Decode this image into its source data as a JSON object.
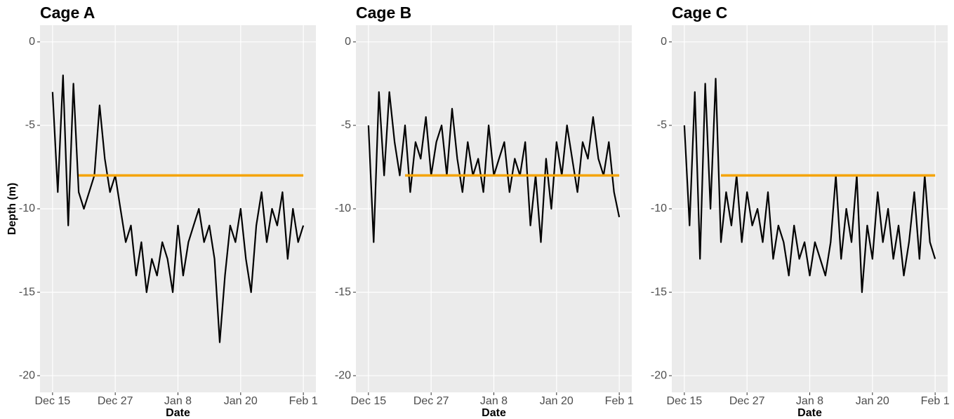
{
  "chart_data": [
    {
      "type": "line",
      "title": "Cage A",
      "x_label": "Date",
      "y_label": "Depth (m)",
      "x": [
        "Dec 15",
        "Dec 16",
        "Dec 17",
        "Dec 18",
        "Dec 19",
        "Dec 20",
        "Dec 21",
        "Dec 22",
        "Dec 23",
        "Dec 24",
        "Dec 25",
        "Dec 26",
        "Dec 27",
        "Dec 28",
        "Dec 29",
        "Dec 30",
        "Dec 31",
        "Jan 1",
        "Jan 2",
        "Jan 3",
        "Jan 4",
        "Jan 5",
        "Jan 6",
        "Jan 7",
        "Jan 8",
        "Jan 9",
        "Jan 10",
        "Jan 11",
        "Jan 12",
        "Jan 13",
        "Jan 14",
        "Jan 15",
        "Jan 16",
        "Jan 17",
        "Jan 18",
        "Jan 19",
        "Jan 20",
        "Jan 21",
        "Jan 22",
        "Jan 23",
        "Jan 24",
        "Jan 25",
        "Jan 26",
        "Jan 27",
        "Jan 28",
        "Jan 29",
        "Jan 30",
        "Jan 31",
        "Feb 1"
      ],
      "values": [
        -3,
        -9,
        -2,
        -11,
        -2.5,
        -9,
        -10,
        -9,
        -8,
        -3.8,
        -7,
        -9,
        -8,
        -10,
        -12,
        -11,
        -14,
        -12,
        -15,
        -13,
        -14,
        -12,
        -13,
        -15,
        -11,
        -14,
        -12,
        -11,
        -10,
        -12,
        -11,
        -13,
        -18,
        -14,
        -11,
        -12,
        -10,
        -13,
        -15,
        -11,
        -9,
        -12,
        -10,
        -11,
        -9,
        -13,
        -10,
        -12,
        -11
      ],
      "color": "#000000",
      "hline": {
        "value": -8,
        "x": [
          "Dec 20",
          "Feb 1"
        ],
        "color": "#f5a300"
      },
      "xticks": [
        "Dec 15",
        "Dec 27",
        "Jan 8",
        "Jan 20",
        "Feb 1"
      ],
      "ylim": [
        -21,
        1
      ],
      "yticks": [
        0,
        -5,
        -10,
        -15,
        -20
      ],
      "grid": true
    },
    {
      "type": "line",
      "title": "Cage B",
      "x_label": "Date",
      "x": [
        "Dec 15",
        "Dec 16",
        "Dec 17",
        "Dec 18",
        "Dec 19",
        "Dec 20",
        "Dec 21",
        "Dec 22",
        "Dec 23",
        "Dec 24",
        "Dec 25",
        "Dec 26",
        "Dec 27",
        "Dec 28",
        "Dec 29",
        "Dec 30",
        "Dec 31",
        "Jan 1",
        "Jan 2",
        "Jan 3",
        "Jan 4",
        "Jan 5",
        "Jan 6",
        "Jan 7",
        "Jan 8",
        "Jan 9",
        "Jan 10",
        "Jan 11",
        "Jan 12",
        "Jan 13",
        "Jan 14",
        "Jan 15",
        "Jan 16",
        "Jan 17",
        "Jan 18",
        "Jan 19",
        "Jan 20",
        "Jan 21",
        "Jan 22",
        "Jan 23",
        "Jan 24",
        "Jan 25",
        "Jan 26",
        "Jan 27",
        "Jan 28",
        "Jan 29",
        "Jan 30",
        "Jan 31",
        "Feb 1"
      ],
      "values": [
        -5,
        -12,
        -3,
        -8,
        -3,
        -6,
        -8,
        -5,
        -9,
        -6,
        -7,
        -4.5,
        -8,
        -6,
        -5,
        -8,
        -4,
        -7,
        -9,
        -6,
        -8,
        -7,
        -9,
        -5,
        -8,
        -7,
        -6,
        -9,
        -7,
        -8,
        -6,
        -11,
        -8,
        -12,
        -7,
        -10,
        -6,
        -8,
        -5,
        -7,
        -9,
        -6,
        -7,
        -4.5,
        -7,
        -8,
        -6,
        -9,
        -10.5
      ],
      "color": "#000000",
      "hline": {
        "value": -8,
        "x": [
          "Dec 22",
          "Feb 1"
        ],
        "color": "#f5a300"
      },
      "xticks": [
        "Dec 15",
        "Dec 27",
        "Jan 8",
        "Jan 20",
        "Feb 1"
      ],
      "ylim": [
        -21,
        1
      ],
      "yticks": [
        0,
        -5,
        -10,
        -15,
        -20
      ],
      "grid": true
    },
    {
      "type": "line",
      "title": "Cage C",
      "x_label": "Date",
      "x": [
        "Dec 15",
        "Dec 16",
        "Dec 17",
        "Dec 18",
        "Dec 19",
        "Dec 20",
        "Dec 21",
        "Dec 22",
        "Dec 23",
        "Dec 24",
        "Dec 25",
        "Dec 26",
        "Dec 27",
        "Dec 28",
        "Dec 29",
        "Dec 30",
        "Dec 31",
        "Jan 1",
        "Jan 2",
        "Jan 3",
        "Jan 4",
        "Jan 5",
        "Jan 6",
        "Jan 7",
        "Jan 8",
        "Jan 9",
        "Jan 10",
        "Jan 11",
        "Jan 12",
        "Jan 13",
        "Jan 14",
        "Jan 15",
        "Jan 16",
        "Jan 17",
        "Jan 18",
        "Jan 19",
        "Jan 20",
        "Jan 21",
        "Jan 22",
        "Jan 23",
        "Jan 24",
        "Jan 25",
        "Jan 26",
        "Jan 27",
        "Jan 28",
        "Jan 29",
        "Jan 30",
        "Jan 31",
        "Feb 1"
      ],
      "values": [
        -5,
        -11,
        -3,
        -13,
        -2.5,
        -10,
        -2.2,
        -12,
        -9,
        -11,
        -8,
        -12,
        -9,
        -11,
        -10,
        -12,
        -9,
        -13,
        -11,
        -12,
        -14,
        -11,
        -13,
        -12,
        -14,
        -12,
        -13,
        -14,
        -12,
        -8,
        -13,
        -10,
        -12,
        -8,
        -15,
        -11,
        -13,
        -9,
        -12,
        -10,
        -13,
        -11,
        -14,
        -12,
        -9,
        -13,
        -8,
        -12,
        -13
      ],
      "color": "#000000",
      "hline": {
        "value": -8,
        "x": [
          "Dec 22",
          "Feb 1"
        ],
        "color": "#f5a300"
      },
      "xticks": [
        "Dec 15",
        "Dec 27",
        "Jan 8",
        "Jan 20",
        "Feb 1"
      ],
      "ylim": [
        -21,
        1
      ],
      "yticks": [
        0,
        -5,
        -10,
        -15,
        -20
      ],
      "grid": true
    }
  ]
}
